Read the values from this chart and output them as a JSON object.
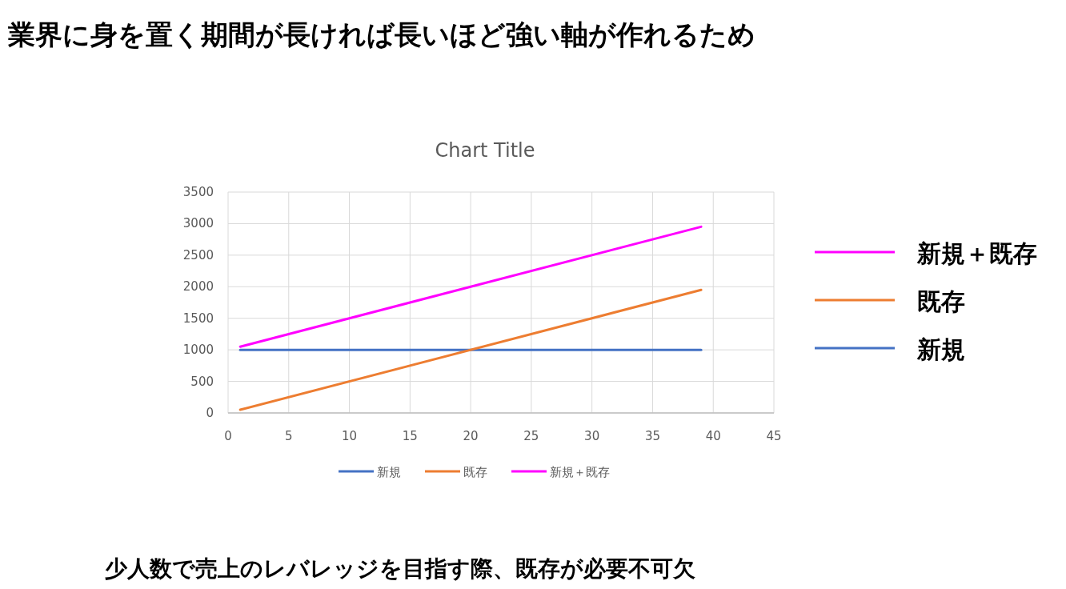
{
  "chart_data": {
    "type": "line",
    "title": "業界に身を置く期間が長ければ長いほど強い軸が作れるため",
    "subtitle": "Chart Title",
    "x": [
      1,
      39
    ],
    "series": [
      {
        "name": "新規",
        "color": "#4472c4",
        "values": [
          1000,
          1000
        ]
      },
      {
        "name": "既存",
        "color": "#ed7d31",
        "values": [
          50,
          1950
        ]
      },
      {
        "name": "新規＋既存",
        "color": "#ff00ff",
        "values": [
          1050,
          2950
        ]
      }
    ],
    "xlim": [
      0,
      45
    ],
    "xticks": [
      0,
      5,
      10,
      15,
      20,
      25,
      30,
      35,
      40,
      45
    ],
    "ylim": [
      0,
      3500
    ],
    "yticks": [
      0,
      500,
      1000,
      1500,
      2000,
      2500,
      3000,
      3500
    ],
    "grid": true,
    "legend": "bottom",
    "marker": "none",
    "line_style": "solid",
    "annotations": [
      "少人数で売上のレバレッジを目指す際、既存が必要不可欠"
    ]
  }
}
